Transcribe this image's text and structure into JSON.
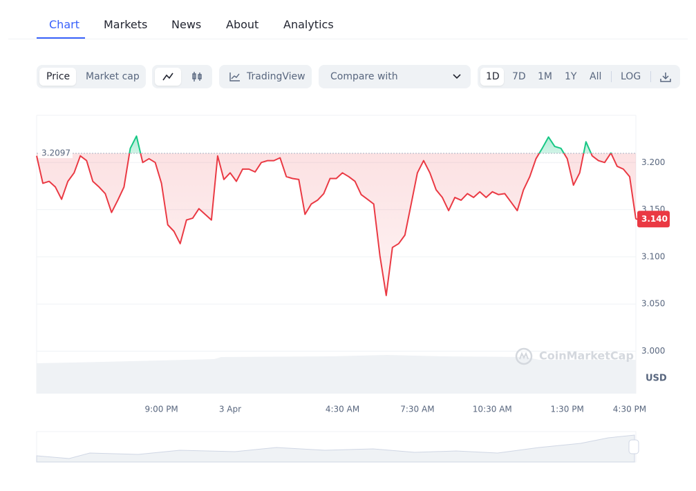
{
  "tabs": [
    "Chart",
    "Markets",
    "News",
    "About",
    "Analytics"
  ],
  "toolbar": {
    "price_toggle": [
      "Price",
      "Market cap"
    ],
    "tradingview": "TradingView",
    "compare": "Compare with",
    "ranges": [
      "1D",
      "7D",
      "1M",
      "1Y",
      "All"
    ],
    "log": "LOG"
  },
  "chart_data": {
    "type": "line",
    "categories": [
      null,
      null,
      null,
      null,
      null,
      null,
      null,
      null,
      null,
      null,
      null,
      null,
      null,
      null,
      null,
      null,
      null,
      null,
      null,
      null,
      "9:00 PM",
      null,
      null,
      null,
      null,
      null,
      null,
      null,
      null,
      null,
      null,
      "3 Apr",
      null,
      null,
      null,
      null,
      null,
      null,
      null,
      null,
      null,
      null,
      null,
      null,
      null,
      null,
      null,
      null,
      null,
      "4:30 AM",
      null,
      null,
      null,
      null,
      null,
      null,
      null,
      null,
      null,
      null,
      null,
      "7:30 AM",
      null,
      null,
      null,
      null,
      null,
      null,
      null,
      null,
      null,
      null,
      null,
      "10:30 AM",
      null,
      null,
      null,
      null,
      null,
      null,
      null,
      null,
      null,
      null,
      null,
      "1:30 PM",
      null,
      null,
      null,
      null,
      null,
      null,
      null,
      null,
      null,
      "4:30 PM",
      null
    ],
    "values": [
      3.207,
      3.178,
      3.18,
      3.174,
      3.161,
      3.18,
      3.189,
      3.207,
      3.202,
      3.18,
      3.174,
      3.167,
      3.147,
      3.16,
      3.174,
      3.215,
      3.228,
      3.2,
      3.204,
      3.2,
      3.178,
      3.134,
      3.127,
      3.114,
      3.139,
      3.141,
      3.151,
      3.145,
      3.139,
      3.207,
      3.182,
      3.189,
      3.18,
      3.193,
      3.193,
      3.19,
      3.2,
      3.202,
      3.202,
      3.205,
      3.185,
      3.183,
      3.182,
      3.145,
      3.156,
      3.16,
      3.167,
      3.183,
      3.183,
      3.189,
      3.185,
      3.18,
      3.166,
      3.161,
      3.156,
      3.101,
      3.059,
      3.11,
      3.114,
      3.123,
      3.156,
      3.189,
      3.202,
      3.189,
      3.171,
      3.163,
      3.149,
      3.163,
      3.16,
      3.167,
      3.163,
      3.169,
      3.163,
      3.169,
      3.166,
      3.167,
      3.158,
      3.149,
      3.171,
      3.185,
      3.204,
      3.215,
      3.227,
      3.217,
      3.215,
      3.204,
      3.176,
      3.189,
      3.222,
      3.207,
      3.202,
      3.2,
      3.21,
      3.196,
      3.193,
      3.185,
      3.14
    ],
    "colors": {
      "below": "#ea3943",
      "above": "#16c784"
    },
    "reference": 3.2097,
    "current_price": {
      "value": 3.14,
      "label": "3.140"
    },
    "ylim": [
      2.955,
      3.25
    ],
    "yticks": [
      {
        "value": 3.0,
        "label": "3.000"
      },
      {
        "value": 3.05,
        "label": "3.050"
      },
      {
        "value": 3.1,
        "label": "3.100"
      },
      {
        "value": 3.15,
        "label": "3.150"
      },
      {
        "value": 3.2,
        "label": "3.200"
      }
    ],
    "currency": "USD",
    "watermark": "CoinMarketCap",
    "grid": true
  }
}
